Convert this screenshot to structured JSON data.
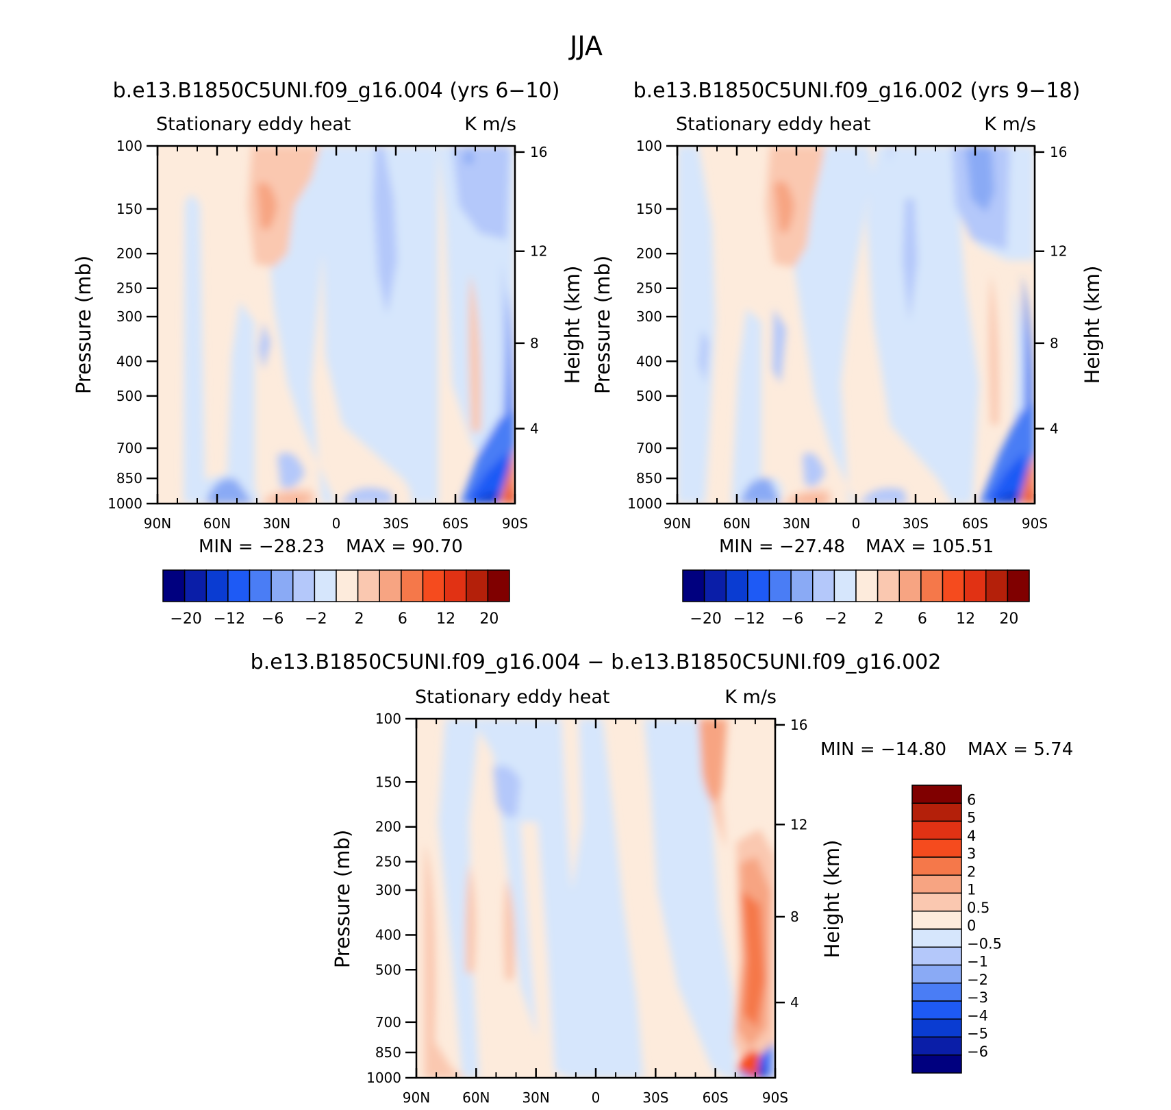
{
  "figure_title": "JJA",
  "chart_data": [
    {
      "type": "heatmap",
      "id": "p1",
      "title": "b.e13.B1850C5UNI.f09_g16.004 (yrs 6−10)",
      "subtitle_left": "Stationary eddy heat",
      "subtitle_right": "K m/s",
      "xlabel": "",
      "ylabel": "Pressure (mb)",
      "ylabel_right": "Height (km)",
      "x_ticks": [
        "90N",
        "60N",
        "30N",
        "0",
        "30S",
        "60S",
        "90S"
      ],
      "x_range": [
        90,
        -90
      ],
      "y_ticks": [
        100,
        150,
        200,
        250,
        300,
        400,
        500,
        700,
        850,
        1000
      ],
      "y_range": [
        100,
        1000
      ],
      "y_right_ticks": [
        16,
        12,
        8,
        4
      ],
      "min_label": "MIN = −28.23",
      "max_label": "MAX = 90.70",
      "min": -28.23,
      "max": 90.7,
      "colorbar": {
        "orientation": "horizontal",
        "colors": [
          "#00007f",
          "#0a1ea8",
          "#0a3cd2",
          "#1e5af5",
          "#4a7df5",
          "#8aaaf5",
          "#b4c8fa",
          "#d6e6fc",
          "#fdebdc",
          "#fac8b0",
          "#f7a482",
          "#f5784a",
          "#f54b1e",
          "#e13214",
          "#b4200a",
          "#800000"
        ],
        "tick_labels": [
          "−20",
          "−12",
          "−6",
          "−2",
          "2",
          "6",
          "12",
          "20"
        ]
      }
    },
    {
      "type": "heatmap",
      "id": "p2",
      "title": "b.e13.B1850C5UNI.f09_g16.002 (yrs 9−18)",
      "subtitle_left": "Stationary eddy heat",
      "subtitle_right": "K m/s",
      "xlabel": "",
      "ylabel": "Pressure (mb)",
      "ylabel_right": "Height (km)",
      "x_ticks": [
        "90N",
        "60N",
        "30N",
        "0",
        "30S",
        "60S",
        "90S"
      ],
      "x_range": [
        90,
        -90
      ],
      "y_ticks": [
        100,
        150,
        200,
        250,
        300,
        400,
        500,
        700,
        850,
        1000
      ],
      "y_range": [
        100,
        1000
      ],
      "y_right_ticks": [
        16,
        12,
        8,
        4
      ],
      "min_label": "MIN = −27.48",
      "max_label": "MAX = 105.51",
      "min": -27.48,
      "max": 105.51,
      "colorbar": {
        "orientation": "horizontal",
        "colors": [
          "#00007f",
          "#0a1ea8",
          "#0a3cd2",
          "#1e5af5",
          "#4a7df5",
          "#8aaaf5",
          "#b4c8fa",
          "#d6e6fc",
          "#fdebdc",
          "#fac8b0",
          "#f7a482",
          "#f5784a",
          "#f54b1e",
          "#e13214",
          "#b4200a",
          "#800000"
        ],
        "tick_labels": [
          "−20",
          "−12",
          "−6",
          "−2",
          "2",
          "6",
          "12",
          "20"
        ]
      }
    },
    {
      "type": "heatmap",
      "id": "p3",
      "title": "b.e13.B1850C5UNI.f09_g16.004 − b.e13.B1850C5UNI.f09_g16.002",
      "subtitle_left": "Stationary eddy heat",
      "subtitle_right": "K m/s",
      "xlabel": "",
      "ylabel": "Pressure (mb)",
      "ylabel_right": "Height (km)",
      "x_ticks": [
        "90N",
        "60N",
        "30N",
        "0",
        "30S",
        "60S",
        "90S"
      ],
      "x_range": [
        90,
        -90
      ],
      "y_ticks": [
        100,
        150,
        200,
        250,
        300,
        400,
        500,
        700,
        850,
        1000
      ],
      "y_range": [
        100,
        1000
      ],
      "y_right_ticks": [
        16,
        12,
        8,
        4
      ],
      "min_label": "MIN = −14.80",
      "max_label": "MAX = 5.74",
      "min": -14.8,
      "max": 5.74,
      "colorbar": {
        "orientation": "vertical",
        "colors": [
          "#800000",
          "#b4200a",
          "#e13214",
          "#f54b1e",
          "#f5784a",
          "#f7a482",
          "#fac8b0",
          "#fdebdc",
          "#d6e6fc",
          "#b4c8fa",
          "#8aaaf5",
          "#4a7df5",
          "#1e5af5",
          "#0a3cd2",
          "#0a1ea8",
          "#00007f"
        ],
        "tick_labels": [
          "6",
          "5",
          "4",
          "3",
          "2",
          "1",
          "0.5",
          "0",
          "−0.5",
          "−1",
          "−2",
          "−3",
          "−4",
          "−5",
          "−6"
        ]
      }
    }
  ]
}
